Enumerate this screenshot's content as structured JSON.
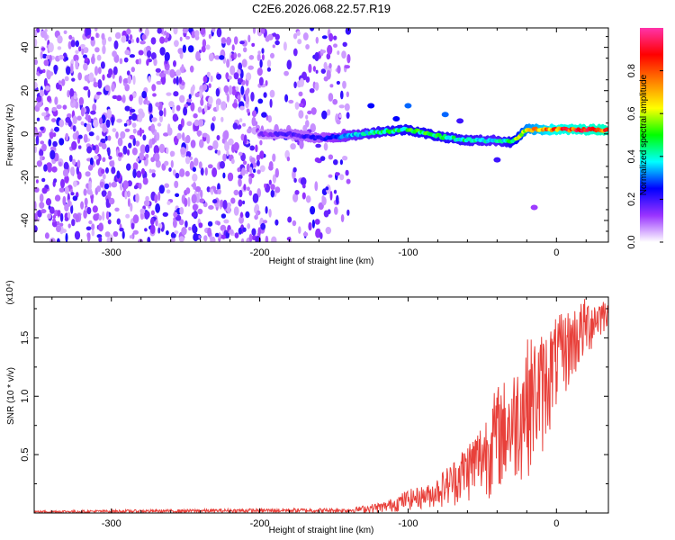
{
  "title": "C2E6.2026.068.22.57.R19",
  "chart_data": [
    {
      "type": "heatmap",
      "name": "spectrogram",
      "title": "C2E6.2026.068.22.57.R19",
      "xlabel": "Height of straight line (km)",
      "ylabel": "Frequency (Hz)",
      "xlim": [
        -352,
        35
      ],
      "ylim": [
        -50,
        49
      ],
      "xticks": [
        -300,
        -200,
        -100,
        0
      ],
      "xtick_labels": [
        "-300",
        "-200",
        "-100",
        "0"
      ],
      "yticks": [
        40,
        20,
        0,
        -20,
        -40
      ],
      "ytick_labels": [
        "40",
        "20",
        "0",
        "-20",
        "-40"
      ],
      "colorbar": {
        "label": "Normalized spectral amplitude",
        "range": [
          0,
          1
        ],
        "ticks": [
          0.0,
          0.2,
          0.4,
          0.6,
          0.8
        ],
        "tick_labels": [
          "0.0",
          "0.2",
          "0.4",
          "0.6",
          "0.8"
        ],
        "colors": [
          "#ffffff",
          "#9933ff",
          "#0000ff",
          "#00ffff",
          "#00ff00",
          "#ffff00",
          "#ff8000",
          "#ff0000",
          "#ff33aa"
        ]
      },
      "noise_region": {
        "x_from": -352,
        "x_to": -140,
        "amplitude": 0.2
      },
      "signal_track": {
        "x": [
          -200,
          -180,
          -160,
          -140,
          -120,
          -100,
          -80,
          -60,
          -40,
          -30,
          -20,
          0,
          35
        ],
        "freq": [
          0,
          0,
          -2,
          -1,
          1,
          2,
          -1,
          -3,
          -3,
          -4,
          2,
          2,
          2
        ],
        "amplitude": [
          0.15,
          0.2,
          0.22,
          0.35,
          0.45,
          0.5,
          0.5,
          0.45,
          0.4,
          0.5,
          0.7,
          0.85,
          0.9
        ]
      }
    },
    {
      "type": "line",
      "name": "snr",
      "xlabel": "Height of straight line (km)",
      "ylabel": "SNR (10 * v/v)",
      "multiplier": "(x10⁴)",
      "xlim": [
        -352,
        35
      ],
      "ylim": [
        0,
        1.85
      ],
      "xticks": [
        -300,
        -200,
        -100,
        0
      ],
      "xtick_labels": [
        "-300",
        "-200",
        "-100",
        "0"
      ],
      "yticks": [
        0.5,
        1.0,
        1.5
      ],
      "ytick_labels": [
        "0.5",
        "1.0",
        "1.5"
      ],
      "color": "#e8403a",
      "envelope": {
        "x": [
          -352,
          -180,
          -140,
          -115,
          -100,
          -85,
          -70,
          -60,
          -50,
          -40,
          -30,
          -20,
          -10,
          0,
          20,
          35
        ],
        "upper": [
          0.02,
          0.04,
          0.04,
          0.1,
          0.2,
          0.25,
          0.45,
          0.62,
          0.8,
          1.1,
          1.2,
          1.5,
          1.55,
          1.68,
          1.85,
          1.85
        ],
        "lower": [
          0.0,
          0.0,
          0.0,
          0.0,
          0.02,
          0.04,
          0.05,
          0.08,
          0.1,
          0.15,
          0.2,
          0.3,
          0.45,
          0.85,
          1.3,
          1.6
        ]
      }
    }
  ]
}
